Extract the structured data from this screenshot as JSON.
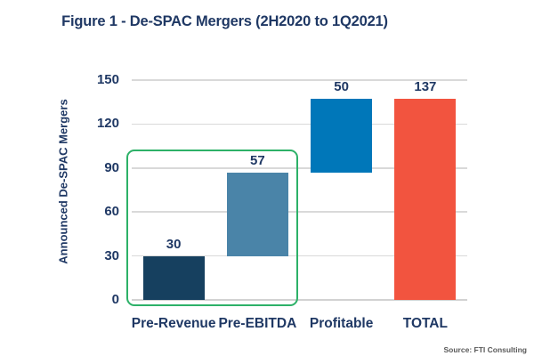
{
  "header": {
    "title": "Figure 1 - De-SPAC Mergers (2H2020 to 1Q2021)"
  },
  "footer": {
    "source": "Source: FTI Consulting"
  },
  "colors": {
    "navy_text": "#1f3864",
    "gridline": "#d9d9d9",
    "highlight_green": "#2db168",
    "source_gray": "#595959"
  },
  "chart_data": {
    "type": "bar",
    "subtype": "waterfall",
    "title": "Figure 1 - De-SPAC Mergers (2H2020 to 1Q2021)",
    "ylabel": "Announced De-SPAC Mergers",
    "xlabel": "",
    "ylim": [
      0,
      150
    ],
    "yticks": [
      0,
      30,
      60,
      90,
      120,
      150
    ],
    "grid": true,
    "legend": false,
    "categories": [
      "Pre-Revenue",
      "Pre-EBITDA",
      "Profitable",
      "TOTAL"
    ],
    "values": [
      30,
      57,
      50,
      137
    ],
    "bar_starts": [
      0,
      30,
      87,
      0
    ],
    "bar_colors": [
      "#16405f",
      "#4a84a8",
      "#0077b9",
      "#f2543f"
    ],
    "data_labels": [
      "30",
      "57",
      "50",
      "137"
    ],
    "highlight_box": {
      "categories": [
        "Pre-Revenue",
        "Pre-EBITDA"
      ],
      "color": "#2db168"
    },
    "source": "Source: FTI Consulting"
  }
}
